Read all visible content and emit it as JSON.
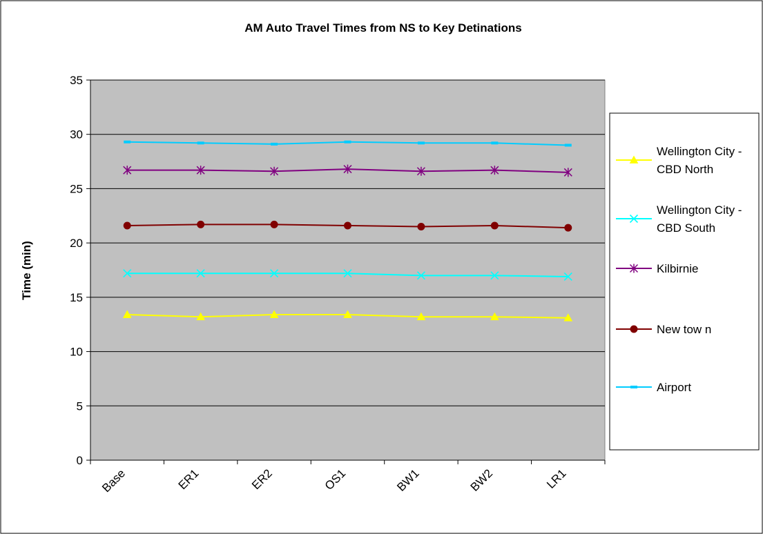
{
  "chart_data": {
    "type": "line",
    "title": "AM Auto Travel Times from NS to Key Detinations",
    "xlabel": "",
    "ylabel": "Time (min)",
    "ylim": [
      0,
      35
    ],
    "yticks": [
      0,
      5,
      10,
      15,
      20,
      25,
      30,
      35
    ],
    "grid": true,
    "legend_position": "right",
    "categories": [
      "Base",
      "ER1",
      "ER2",
      "OS1",
      "BW1",
      "BW2",
      "LR1"
    ],
    "series": [
      {
        "name": "Wellington City - CBD North",
        "legend_lines": [
          "Wellington City -",
          "CBD North"
        ],
        "color": "#ffff00",
        "marker": "triangle",
        "values": [
          13.4,
          13.2,
          13.4,
          13.4,
          13.2,
          13.2,
          13.1
        ]
      },
      {
        "name": "Wellington City - CBD South",
        "legend_lines": [
          "Wellington City -",
          "CBD South"
        ],
        "color": "#00ffff",
        "marker": "x",
        "values": [
          17.2,
          17.2,
          17.2,
          17.2,
          17.0,
          17.0,
          16.9
        ]
      },
      {
        "name": "Kilbirnie",
        "legend_lines": [
          "Kilbirnie"
        ],
        "color": "#800080",
        "marker": "star",
        "values": [
          26.7,
          26.7,
          26.6,
          26.8,
          26.6,
          26.7,
          26.5
        ]
      },
      {
        "name": "New tow n",
        "legend_lines": [
          "New tow n"
        ],
        "color": "#800000",
        "marker": "circle",
        "values": [
          21.6,
          21.7,
          21.7,
          21.6,
          21.5,
          21.6,
          21.4
        ]
      },
      {
        "name": "Airport",
        "legend_lines": [
          "Airport"
        ],
        "color": "#00ccff",
        "marker": "dash",
        "values": [
          29.3,
          29.2,
          29.1,
          29.3,
          29.2,
          29.2,
          29.0
        ]
      }
    ]
  },
  "colors": {
    "plot_background": "#c0c0c0",
    "gridline": "#000000"
  }
}
